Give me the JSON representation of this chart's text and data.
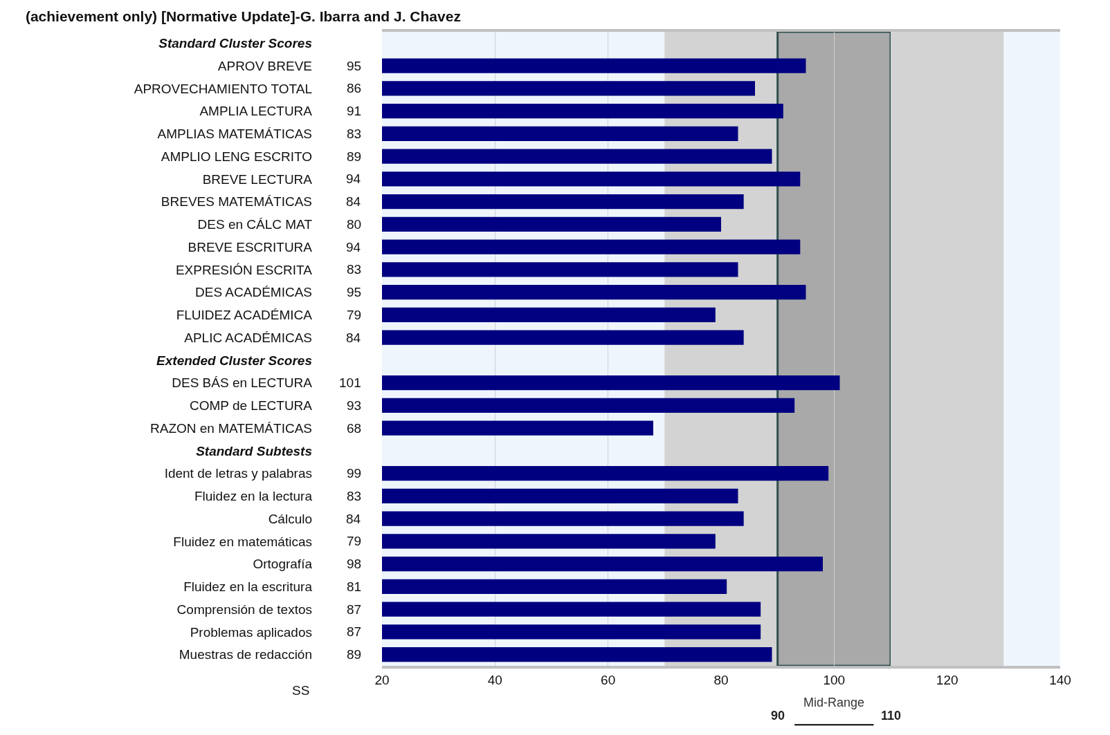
{
  "chart_data": {
    "type": "bar",
    "orientation": "horizontal",
    "title": "(achievement only) [Normative Update]-G. Ibarra and J. Chavez",
    "categories": [
      "Standard Cluster Scores",
      "APROV BREVE",
      "APROVECHAMIENTO TOTAL",
      "AMPLIA LECTURA",
      "AMPLIAS MATEMÁTICAS",
      "AMPLIO LENG ESCRITO",
      "BREVE LECTURA",
      "BREVES MATEMÁTICAS",
      "DES en CÁLC MAT",
      "BREVE ESCRITURA",
      "EXPRESIÓN ESCRITA",
      "DES ACADÉMICAS",
      "FLUIDEZ ACADÉMICA",
      "APLIC ACADÉMICAS",
      "Extended Cluster Scores",
      "DES BÁS en LECTURA",
      "COMP de LECTURA",
      "RAZON en MATEMÁTICAS",
      "Standard Subtests",
      "Ident de letras y palabras",
      "Fluidez en la lectura",
      "Cálculo",
      "Fluidez en matemáticas",
      "Ortografía",
      "Fluidez en la escritura",
      "Comprensión de textos",
      "Problemas aplicados",
      "Muestras de redacción"
    ],
    "values": [
      null,
      95,
      86,
      91,
      83,
      89,
      94,
      84,
      80,
      94,
      83,
      95,
      79,
      84,
      null,
      101,
      93,
      68,
      null,
      99,
      83,
      84,
      79,
      98,
      81,
      87,
      87,
      89
    ],
    "color": "#000080",
    "data_labels": true,
    "xlim": [
      20,
      140
    ],
    "xticks": [
      20,
      40,
      60,
      80,
      100,
      120,
      140
    ],
    "grid": "x",
    "legend": false,
    "bands": [
      {
        "axis": "x",
        "from": 70,
        "to": 90,
        "color": "#d3d3d3"
      },
      {
        "axis": "x",
        "from": 90,
        "to": 110,
        "label": "Mid-Range",
        "color": "#a9a9a9"
      },
      {
        "axis": "x",
        "from": 110,
        "to": 130,
        "color": "#d3d3d3"
      }
    ],
    "annotations": [
      "SS",
      "90",
      "110"
    ]
  }
}
